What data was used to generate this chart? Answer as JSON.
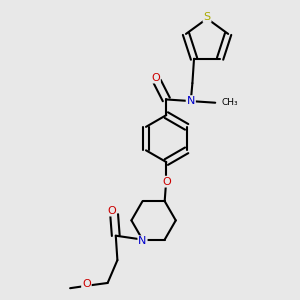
{
  "background_color": "#e8e8e8",
  "bond_color": "#000000",
  "bond_width": 1.5,
  "atom_colors": {
    "O": "#cc0000",
    "N": "#0000cc",
    "S": "#aaaa00",
    "C": "#000000"
  },
  "font_size": 8.0
}
